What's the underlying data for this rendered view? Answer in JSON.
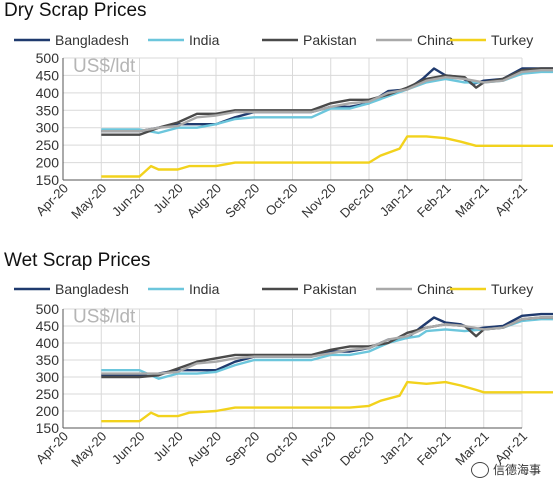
{
  "watermark": "信德海事",
  "colors": {
    "Bangladesh": "#1f3a6e",
    "India": "#6cc6dc",
    "Pakistan": "#4a4a4a",
    "China": "#a9a9a9",
    "Turkey": "#f2d21c"
  },
  "chart_data": [
    {
      "type": "line",
      "title": "Dry Scrap Prices",
      "unit_label": "US$/ldt",
      "y_ticks": [
        150,
        200,
        250,
        300,
        350,
        400,
        450,
        500
      ],
      "ylim": [
        150,
        500
      ],
      "x_tick_labels": [
        "Apr-20",
        "May-20",
        "Jun-20",
        "Jul-20",
        "Aug-20",
        "Sep-20",
        "Oct-20",
        "Nov-20",
        "Dec-20",
        "Jan-21",
        "Feb-21",
        "Mar-21",
        "Apr-21"
      ],
      "legend": [
        "Bangladesh",
        "India",
        "Pakistan",
        "China",
        "Turkey"
      ],
      "series": [
        {
          "name": "Bangladesh",
          "points": [
            [
              1,
              290
            ],
            [
              1.5,
              290
            ],
            [
              2,
              290
            ],
            [
              2.5,
              300
            ],
            [
              3,
              310
            ],
            [
              3.5,
              310
            ],
            [
              4,
              310
            ],
            [
              4.5,
              330
            ],
            [
              5,
              345
            ],
            [
              5.5,
              345
            ],
            [
              6,
              345
            ],
            [
              6.5,
              345
            ],
            [
              7,
              360
            ],
            [
              7.5,
              360
            ],
            [
              8,
              370
            ],
            [
              8.5,
              405
            ],
            [
              9,
              410
            ],
            [
              9.4,
              440
            ],
            [
              9.7,
              470
            ],
            [
              10,
              450
            ],
            [
              10.4,
              445
            ],
            [
              10.7,
              425
            ],
            [
              11,
              435
            ],
            [
              11.5,
              440
            ],
            [
              12,
              470
            ],
            [
              12.5,
              470
            ],
            [
              13,
              470
            ]
          ]
        },
        {
          "name": "India",
          "points": [
            [
              1,
              295
            ],
            [
              1.5,
              295
            ],
            [
              2,
              295
            ],
            [
              2.5,
              285
            ],
            [
              3,
              300
            ],
            [
              3.5,
              300
            ],
            [
              4,
              310
            ],
            [
              4.5,
              325
            ],
            [
              5,
              330
            ],
            [
              5.5,
              330
            ],
            [
              6,
              330
            ],
            [
              6.5,
              330
            ],
            [
              7,
              355
            ],
            [
              7.5,
              355
            ],
            [
              8,
              370
            ],
            [
              8.5,
              390
            ],
            [
              9,
              410
            ],
            [
              9.5,
              430
            ],
            [
              10,
              440
            ],
            [
              10.5,
              430
            ],
            [
              11,
              430
            ],
            [
              11.5,
              435
            ],
            [
              12,
              455
            ],
            [
              12.5,
              460
            ],
            [
              13,
              460
            ]
          ]
        },
        {
          "name": "Pakistan",
          "points": [
            [
              1,
              280
            ],
            [
              1.5,
              280
            ],
            [
              2,
              280
            ],
            [
              2.5,
              300
            ],
            [
              3,
              315
            ],
            [
              3.5,
              340
            ],
            [
              4,
              340
            ],
            [
              4.5,
              350
            ],
            [
              5,
              350
            ],
            [
              5.5,
              350
            ],
            [
              6,
              350
            ],
            [
              6.5,
              350
            ],
            [
              7,
              370
            ],
            [
              7.5,
              380
            ],
            [
              8,
              380
            ],
            [
              8.5,
              395
            ],
            [
              9,
              415
            ],
            [
              9.5,
              440
            ],
            [
              10,
              450
            ],
            [
              10.5,
              445
            ],
            [
              10.8,
              415
            ],
            [
              11,
              430
            ],
            [
              11.5,
              440
            ],
            [
              12,
              465
            ],
            [
              12.5,
              470
            ],
            [
              13,
              470
            ]
          ]
        },
        {
          "name": "China",
          "points": [
            [
              1,
              290
            ],
            [
              2,
              290
            ],
            [
              2.5,
              300
            ],
            [
              3,
              305
            ],
            [
              3.5,
              330
            ],
            [
              4,
              335
            ],
            [
              4.5,
              345
            ],
            [
              5,
              345
            ],
            [
              6,
              345
            ],
            [
              6.5,
              345
            ],
            [
              7,
              360
            ],
            [
              7.5,
              370
            ],
            [
              8,
              375
            ],
            [
              8.5,
              400
            ],
            [
              9,
              410
            ],
            [
              9.5,
              435
            ],
            [
              10,
              445
            ],
            [
              10.5,
              440
            ],
            [
              11,
              430
            ],
            [
              11.5,
              435
            ],
            [
              12,
              460
            ],
            [
              12.5,
              465
            ],
            [
              13,
              465
            ]
          ]
        },
        {
          "name": "Turkey",
          "points": [
            [
              1,
              160
            ],
            [
              1.5,
              160
            ],
            [
              2,
              160
            ],
            [
              2.3,
              190
            ],
            [
              2.5,
              180
            ],
            [
              3,
              180
            ],
            [
              3.3,
              190
            ],
            [
              4,
              190
            ],
            [
              4.5,
              200
            ],
            [
              5,
              200
            ],
            [
              6,
              200
            ],
            [
              7,
              200
            ],
            [
              7.5,
              200
            ],
            [
              8,
              200
            ],
            [
              8.3,
              220
            ],
            [
              8.8,
              240
            ],
            [
              9,
              275
            ],
            [
              9.5,
              275
            ],
            [
              10,
              270
            ],
            [
              10.4,
              260
            ],
            [
              10.8,
              248
            ],
            [
              11,
              248
            ],
            [
              12,
              248
            ],
            [
              13,
              248
            ]
          ]
        }
      ]
    },
    {
      "type": "line",
      "title": "Wet Scrap Prices",
      "unit_label": "US$/ldt",
      "y_ticks": [
        150,
        200,
        250,
        300,
        350,
        400,
        450,
        500
      ],
      "ylim": [
        150,
        500
      ],
      "x_tick_labels": [
        "Apr-20",
        "May-20",
        "Jun-20",
        "Jul-20",
        "Aug-20",
        "Sep-20",
        "Oct-20",
        "Nov-20",
        "Dec-20",
        "Jan-21",
        "Feb-21",
        "Mar-21",
        "Apr-21"
      ],
      "legend": [
        "Bangladesh",
        "India",
        "Pakistan",
        "China",
        "Turkey"
      ],
      "series": [
        {
          "name": "Bangladesh",
          "points": [
            [
              1,
              305
            ],
            [
              1.5,
              305
            ],
            [
              2,
              305
            ],
            [
              2.5,
              310
            ],
            [
              3,
              320
            ],
            [
              3.5,
              320
            ],
            [
              4,
              320
            ],
            [
              4.5,
              345
            ],
            [
              5,
              360
            ],
            [
              5.5,
              360
            ],
            [
              6,
              360
            ],
            [
              6.5,
              360
            ],
            [
              7,
              375
            ],
            [
              7.5,
              375
            ],
            [
              8,
              385
            ],
            [
              8.5,
              410
            ],
            [
              9,
              415
            ],
            [
              9.4,
              450
            ],
            [
              9.7,
              475
            ],
            [
              10,
              460
            ],
            [
              10.4,
              455
            ],
            [
              10.7,
              440
            ],
            [
              11,
              445
            ],
            [
              11.5,
              450
            ],
            [
              12,
              480
            ],
            [
              12.5,
              485
            ],
            [
              13,
              485
            ]
          ]
        },
        {
          "name": "India",
          "points": [
            [
              1,
              320
            ],
            [
              1.5,
              320
            ],
            [
              2,
              320
            ],
            [
              2.5,
              295
            ],
            [
              3,
              310
            ],
            [
              3.5,
              310
            ],
            [
              4,
              315
            ],
            [
              4.5,
              335
            ],
            [
              5,
              350
            ],
            [
              5.5,
              350
            ],
            [
              6,
              350
            ],
            [
              6.5,
              350
            ],
            [
              7,
              365
            ],
            [
              7.5,
              365
            ],
            [
              8,
              375
            ],
            [
              8.5,
              400
            ],
            [
              9,
              415
            ],
            [
              9.3,
              420
            ],
            [
              9.5,
              435
            ],
            [
              10,
              440
            ],
            [
              10.5,
              435
            ],
            [
              11,
              440
            ],
            [
              11.5,
              445
            ],
            [
              12,
              465
            ],
            [
              12.5,
              470
            ],
            [
              13,
              470
            ]
          ]
        },
        {
          "name": "Pakistan",
          "points": [
            [
              1,
              300
            ],
            [
              1.5,
              300
            ],
            [
              2,
              300
            ],
            [
              2.5,
              305
            ],
            [
              3,
              325
            ],
            [
              3.5,
              345
            ],
            [
              4,
              355
            ],
            [
              4.5,
              365
            ],
            [
              5,
              365
            ],
            [
              5.5,
              365
            ],
            [
              6,
              365
            ],
            [
              6.5,
              365
            ],
            [
              7,
              380
            ],
            [
              7.5,
              390
            ],
            [
              8,
              390
            ],
            [
              8.5,
              400
            ],
            [
              9,
              430
            ],
            [
              9.5,
              445
            ],
            [
              10,
              455
            ],
            [
              10.5,
              450
            ],
            [
              10.8,
              420
            ],
            [
              11,
              440
            ],
            [
              11.5,
              445
            ],
            [
              12,
              470
            ],
            [
              12.5,
              475
            ],
            [
              13,
              475
            ]
          ]
        },
        {
          "name": "China",
          "points": [
            [
              1,
              310
            ],
            [
              2,
              310
            ],
            [
              2.5,
              310
            ],
            [
              3,
              315
            ],
            [
              3.5,
              340
            ],
            [
              4,
              345
            ],
            [
              4.5,
              355
            ],
            [
              5,
              360
            ],
            [
              6,
              360
            ],
            [
              6.5,
              360
            ],
            [
              7,
              370
            ],
            [
              7.5,
              380
            ],
            [
              8,
              385
            ],
            [
              8.5,
              410
            ],
            [
              9,
              420
            ],
            [
              9.5,
              445
            ],
            [
              10,
              455
            ],
            [
              10.5,
              450
            ],
            [
              11,
              440
            ],
            [
              11.5,
              445
            ],
            [
              12,
              470
            ],
            [
              12.5,
              475
            ],
            [
              13,
              475
            ]
          ]
        },
        {
          "name": "Turkey",
          "points": [
            [
              1,
              170
            ],
            [
              1.5,
              170
            ],
            [
              2,
              170
            ],
            [
              2.3,
              195
            ],
            [
              2.5,
              185
            ],
            [
              3,
              185
            ],
            [
              3.3,
              195
            ],
            [
              4,
              200
            ],
            [
              4.5,
              210
            ],
            [
              5,
              210
            ],
            [
              6,
              210
            ],
            [
              7,
              210
            ],
            [
              7.5,
              210
            ],
            [
              8,
              215
            ],
            [
              8.3,
              230
            ],
            [
              8.8,
              245
            ],
            [
              9,
              285
            ],
            [
              9.5,
              280
            ],
            [
              10,
              285
            ],
            [
              10.4,
              275
            ],
            [
              10.8,
              262
            ],
            [
              11,
              255
            ],
            [
              12,
              255
            ],
            [
              13,
              255
            ]
          ]
        }
      ]
    }
  ]
}
